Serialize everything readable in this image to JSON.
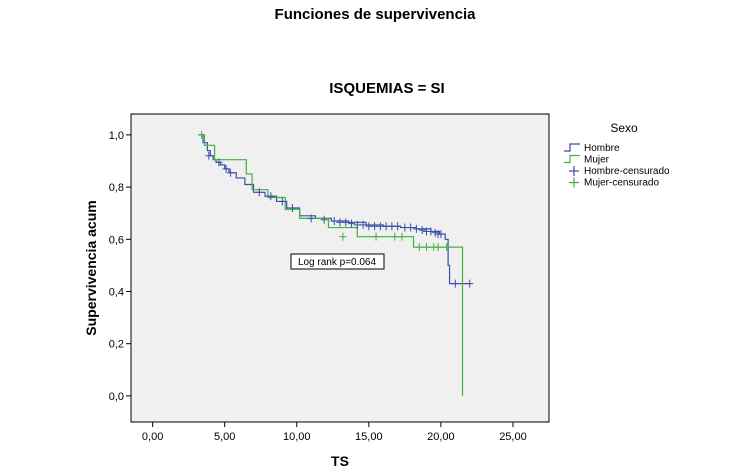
{
  "page_title": "Funciones de supervivencia",
  "chart_data": {
    "type": "line",
    "title": "ISQUEMIAS = SI",
    "xlabel": "TS",
    "ylabel": "Supervivencia acum",
    "xlim": [
      -1.5,
      27.5
    ],
    "ylim": [
      -0.1,
      1.08
    ],
    "x_ticks": [
      0,
      5,
      10,
      15,
      20,
      25
    ],
    "x_tick_labels": [
      "0,00",
      "5,00",
      "10,00",
      "15,00",
      "20,00",
      "25,00"
    ],
    "y_ticks": [
      0,
      0.2,
      0.4,
      0.6,
      0.8,
      1.0
    ],
    "y_tick_labels": [
      "0,0",
      "0,2",
      "0,4",
      "0,6",
      "0,8",
      "1,0"
    ],
    "grid": false,
    "legend_title": "Sexo",
    "legend_position": "right",
    "annotation": "Log rank p=0.064",
    "series": [
      {
        "name": "Hombre",
        "color": "#3b4fa8",
        "step": true,
        "x": [
          3.2,
          3.5,
          3.8,
          4.0,
          4.2,
          4.4,
          4.7,
          5.0,
          5.3,
          5.8,
          6.4,
          7.0,
          7.8,
          8.6,
          9.3,
          10.2,
          11.3,
          12.4,
          13.6,
          14.8,
          16.0,
          17.2,
          18.3,
          19.3,
          19.9,
          20.3,
          20.5,
          20.6,
          22.0
        ],
        "y": [
          1.0,
          0.97,
          0.94,
          0.92,
          0.905,
          0.895,
          0.885,
          0.87,
          0.855,
          0.835,
          0.81,
          0.78,
          0.765,
          0.745,
          0.72,
          0.69,
          0.68,
          0.67,
          0.665,
          0.655,
          0.65,
          0.645,
          0.64,
          0.63,
          0.62,
          0.6,
          0.5,
          0.43,
          0.43
        ]
      },
      {
        "name": "Mujer",
        "color": "#3fb33f",
        "step": true,
        "x": [
          3.2,
          3.6,
          4.3,
          6.5,
          6.9,
          8.0,
          9.2,
          10.2,
          12.2,
          14.2,
          18.1,
          20.1,
          20.6,
          21.5,
          21.5
        ],
        "y": [
          1.0,
          0.96,
          0.905,
          0.85,
          0.79,
          0.76,
          0.715,
          0.68,
          0.645,
          0.61,
          0.57,
          0.57,
          0.57,
          0.57,
          0.0
        ]
      },
      {
        "name": "Hombre-censurado",
        "color": "#3b4fa8",
        "marker": "+",
        "x": [
          3.9,
          4.6,
          5.1,
          5.4,
          7.4,
          8.2,
          9.0,
          9.7,
          11.0,
          11.9,
          12.6,
          13.0,
          13.4,
          13.8,
          14.2,
          14.6,
          15.0,
          15.4,
          15.8,
          16.2,
          16.6,
          17.0,
          17.5,
          17.9,
          18.3,
          18.7,
          19.0,
          19.3,
          19.6,
          19.8,
          20.0,
          21.0,
          22.0
        ],
        "y": [
          0.92,
          0.895,
          0.87,
          0.855,
          0.78,
          0.765,
          0.745,
          0.72,
          0.68,
          0.675,
          0.67,
          0.665,
          0.665,
          0.66,
          0.655,
          0.655,
          0.65,
          0.65,
          0.65,
          0.65,
          0.65,
          0.65,
          0.645,
          0.645,
          0.64,
          0.635,
          0.63,
          0.63,
          0.625,
          0.62,
          0.62,
          0.43,
          0.43
        ]
      },
      {
        "name": "Mujer-censurado",
        "color": "#3fb33f",
        "marker": "+",
        "x": [
          3.4,
          13.2,
          15.5,
          16.8,
          17.3,
          18.5,
          19.0,
          19.5,
          19.8,
          20.4
        ],
        "y": [
          1.0,
          0.61,
          0.61,
          0.61,
          0.61,
          0.57,
          0.57,
          0.57,
          0.57,
          0.57
        ]
      }
    ]
  }
}
